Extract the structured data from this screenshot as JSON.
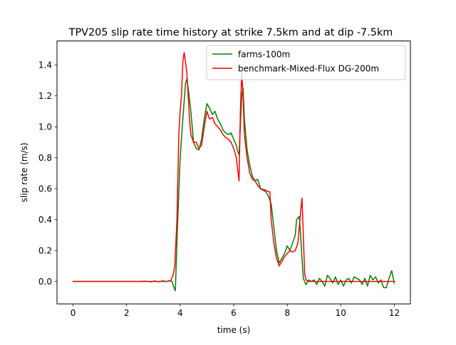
{
  "chart_data": {
    "type": "line",
    "title": "TPV205 slip rate time history at strike 7.5km and at dip -7.5km",
    "xlabel": "time (s)",
    "ylabel": "slip rate (m/s)",
    "xlim": [
      -0.6,
      12.6
    ],
    "ylim": [
      -0.145,
      1.555
    ],
    "xticks": [
      0,
      2,
      4,
      6,
      8,
      10,
      12
    ],
    "xtick_labels": [
      "0",
      "2",
      "4",
      "6",
      "8",
      "10",
      "12"
    ],
    "yticks": [
      0.0,
      0.2,
      0.4,
      0.6,
      0.8,
      1.0,
      1.2,
      1.4
    ],
    "ytick_labels": [
      "0.0",
      "0.2",
      "0.4",
      "0.6",
      "0.8",
      "1.0",
      "1.2",
      "1.4"
    ],
    "grid": false,
    "legend_position": "top-right",
    "series": [
      {
        "name": "farms-100m",
        "color": "#008000",
        "points": [
          [
            0,
            0
          ],
          [
            0.5,
            0
          ],
          [
            1.0,
            0
          ],
          [
            1.5,
            0
          ],
          [
            2.0,
            0
          ],
          [
            2.5,
            0
          ],
          [
            2.7,
            0.002
          ],
          [
            2.9,
            -0.002
          ],
          [
            3.05,
            0.003
          ],
          [
            3.2,
            -0.002
          ],
          [
            3.35,
            0.004
          ],
          [
            3.5,
            0
          ],
          [
            3.6,
            0.006
          ],
          [
            3.7,
            0
          ],
          [
            3.75,
            -0.03
          ],
          [
            3.82,
            -0.06
          ],
          [
            3.9,
            0.35
          ],
          [
            4.0,
            0.8
          ],
          [
            4.1,
            1.05
          ],
          [
            4.2,
            1.28
          ],
          [
            4.25,
            1.31
          ],
          [
            4.3,
            1.25
          ],
          [
            4.4,
            1.1
          ],
          [
            4.5,
            0.9
          ],
          [
            4.6,
            0.86
          ],
          [
            4.7,
            0.85
          ],
          [
            4.8,
            0.92
          ],
          [
            4.9,
            1.05
          ],
          [
            5.0,
            1.15
          ],
          [
            5.1,
            1.12
          ],
          [
            5.2,
            1.08
          ],
          [
            5.3,
            1.1
          ],
          [
            5.4,
            1.05
          ],
          [
            5.5,
            1.02
          ],
          [
            5.6,
            0.98
          ],
          [
            5.7,
            0.96
          ],
          [
            5.8,
            0.95
          ],
          [
            5.9,
            0.96
          ],
          [
            6.0,
            0.92
          ],
          [
            6.1,
            0.88
          ],
          [
            6.15,
            0.84
          ],
          [
            6.2,
            0.82
          ],
          [
            6.3,
            1.2
          ],
          [
            6.35,
            1.25
          ],
          [
            6.4,
            1.05
          ],
          [
            6.5,
            0.85
          ],
          [
            6.6,
            0.75
          ],
          [
            6.7,
            0.68
          ],
          [
            6.8,
            0.65
          ],
          [
            6.9,
            0.66
          ],
          [
            7.0,
            0.6
          ],
          [
            7.2,
            0.58
          ],
          [
            7.3,
            0.55
          ],
          [
            7.4,
            0.5
          ],
          [
            7.5,
            0.35
          ],
          [
            7.6,
            0.2
          ],
          [
            7.7,
            0.12
          ],
          [
            7.8,
            0.15
          ],
          [
            7.9,
            0.18
          ],
          [
            8.0,
            0.23
          ],
          [
            8.1,
            0.2
          ],
          [
            8.2,
            0.25
          ],
          [
            8.3,
            0.3
          ],
          [
            8.35,
            0.4
          ],
          [
            8.45,
            0.42
          ],
          [
            8.5,
            0.3
          ],
          [
            8.55,
            0.15
          ],
          [
            8.6,
            0.02
          ],
          [
            8.7,
            -0.02
          ],
          [
            8.8,
            0.01
          ],
          [
            8.9,
            0
          ],
          [
            9.0,
            0.01
          ],
          [
            9.1,
            -0.02
          ],
          [
            9.2,
            0.02
          ],
          [
            9.3,
            0
          ],
          [
            9.4,
            -0.03
          ],
          [
            9.5,
            0.04
          ],
          [
            9.6,
            0.02
          ],
          [
            9.7,
            -0.01
          ],
          [
            9.8,
            0.03
          ],
          [
            9.9,
            -0.02
          ],
          [
            10.0,
            0.01
          ],
          [
            10.1,
            -0.03
          ],
          [
            10.2,
            0.01
          ],
          [
            10.3,
            0.02
          ],
          [
            10.4,
            -0.01
          ],
          [
            10.5,
            0.03
          ],
          [
            10.6,
            0.02
          ],
          [
            10.7,
            0.01
          ],
          [
            10.8,
            -0.02
          ],
          [
            10.9,
            0.02
          ],
          [
            11.0,
            -0.03
          ],
          [
            11.1,
            0.04
          ],
          [
            11.2,
            0.01
          ],
          [
            11.3,
            0.03
          ],
          [
            11.4,
            -0.01
          ],
          [
            11.5,
            0.01
          ],
          [
            11.6,
            -0.04
          ],
          [
            11.7,
            -0.04
          ],
          [
            11.8,
            0.02
          ],
          [
            11.9,
            0.07
          ],
          [
            12.0,
            -0.01
          ]
        ]
      },
      {
        "name": "benchmark-Mixed-Flux DG-200m",
        "color": "#ff0000",
        "points": [
          [
            0,
            0
          ],
          [
            0.5,
            0
          ],
          [
            1.0,
            0
          ],
          [
            1.5,
            0
          ],
          [
            2.0,
            0
          ],
          [
            2.5,
            0
          ],
          [
            3.0,
            0
          ],
          [
            3.5,
            0
          ],
          [
            3.65,
            0.005
          ],
          [
            3.75,
            0.05
          ],
          [
            3.8,
            0.1
          ],
          [
            3.88,
            0.4
          ],
          [
            3.95,
            0.95
          ],
          [
            4.0,
            1.1
          ],
          [
            4.05,
            1.2
          ],
          [
            4.1,
            1.42
          ],
          [
            4.15,
            1.48
          ],
          [
            4.2,
            1.42
          ],
          [
            4.25,
            1.35
          ],
          [
            4.3,
            1.2
          ],
          [
            4.35,
            1.05
          ],
          [
            4.4,
            0.95
          ],
          [
            4.5,
            0.9
          ],
          [
            4.6,
            0.9
          ],
          [
            4.7,
            0.86
          ],
          [
            4.8,
            0.88
          ],
          [
            4.9,
            1.0
          ],
          [
            5.0,
            1.1
          ],
          [
            5.1,
            1.05
          ],
          [
            5.2,
            1.06
          ],
          [
            5.3,
            1.02
          ],
          [
            5.4,
            1.0
          ],
          [
            5.5,
            0.98
          ],
          [
            5.6,
            0.95
          ],
          [
            5.7,
            0.93
          ],
          [
            5.8,
            0.92
          ],
          [
            5.9,
            0.9
          ],
          [
            6.0,
            0.86
          ],
          [
            6.1,
            0.8
          ],
          [
            6.15,
            0.72
          ],
          [
            6.2,
            0.65
          ],
          [
            6.25,
            1.1
          ],
          [
            6.3,
            1.35
          ],
          [
            6.35,
            1.2
          ],
          [
            6.4,
            0.95
          ],
          [
            6.5,
            0.8
          ],
          [
            6.6,
            0.7
          ],
          [
            6.7,
            0.66
          ],
          [
            6.8,
            0.65
          ],
          [
            6.9,
            0.62
          ],
          [
            7.0,
            0.6
          ],
          [
            7.2,
            0.59
          ],
          [
            7.3,
            0.58
          ],
          [
            7.35,
            0.58
          ],
          [
            7.4,
            0.4
          ],
          [
            7.5,
            0.25
          ],
          [
            7.6,
            0.15
          ],
          [
            7.7,
            0.1
          ],
          [
            7.8,
            0.13
          ],
          [
            7.9,
            0.16
          ],
          [
            8.0,
            0.18
          ],
          [
            8.1,
            0.2
          ],
          [
            8.2,
            0.19
          ],
          [
            8.3,
            0.2
          ],
          [
            8.4,
            0.25
          ],
          [
            8.5,
            0.45
          ],
          [
            8.55,
            0.54
          ],
          [
            8.6,
            0.3
          ],
          [
            8.65,
            0.05
          ],
          [
            8.7,
            0.01
          ],
          [
            8.8,
            0
          ],
          [
            9.0,
            0
          ],
          [
            9.5,
            0
          ],
          [
            10.0,
            0
          ],
          [
            10.5,
            0
          ],
          [
            11.0,
            0
          ],
          [
            11.5,
            0
          ],
          [
            12.0,
            0
          ]
        ]
      }
    ]
  }
}
